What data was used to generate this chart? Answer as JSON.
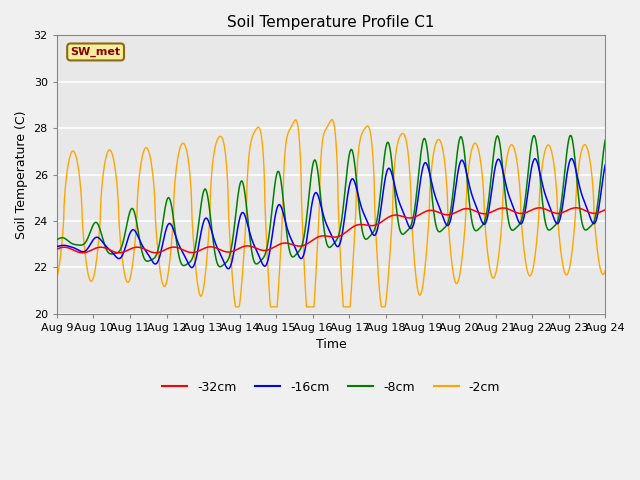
{
  "title": "Soil Temperature Profile C1",
  "xlabel": "Time",
  "ylabel": "Soil Temperature (C)",
  "ylim": [
    20,
    32
  ],
  "xlim": [
    0,
    15
  ],
  "fig_bg_color": "#f0f0f0",
  "plot_bg_color": "#e8e8e8",
  "grid_color": "white",
  "annotation_text": "SW_met",
  "annotation_bg": "#f5f0a0",
  "annotation_fg": "#8b0000",
  "annotation_edge": "#8b6914",
  "x_tick_labels": [
    "Aug 9",
    "Aug 10",
    "Aug 11",
    "Aug 12",
    "Aug 13",
    "Aug 14",
    "Aug 15",
    "Aug 16",
    "Aug 17",
    "Aug 18",
    "Aug 19",
    "Aug 20",
    "Aug 21",
    "Aug 22",
    "Aug 23",
    "Aug 24"
  ]
}
